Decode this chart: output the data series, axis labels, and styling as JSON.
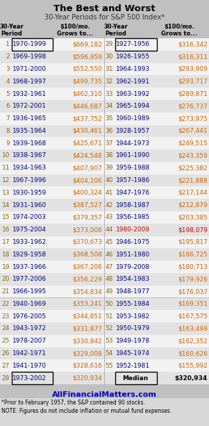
{
  "title": "The Best and Worst",
  "subtitle": "30-Year Periods for S&P 500 Index*",
  "left_data": [
    [
      1,
      "1970-1999",
      "$669,182"
    ],
    [
      2,
      "1969-1998",
      "$596,959"
    ],
    [
      3,
      "1971-2000",
      "$552,550"
    ],
    [
      4,
      "1968-1997",
      "$499,735"
    ],
    [
      5,
      "1932-1961",
      "$462,310"
    ],
    [
      6,
      "1972-2001",
      "$446,687"
    ],
    [
      7,
      "1936-1965",
      "$437,752"
    ],
    [
      8,
      "1935-1964",
      "$430,461"
    ],
    [
      9,
      "1939-1968",
      "$425,671"
    ],
    [
      10,
      "1938-1967",
      "$424,548"
    ],
    [
      11,
      "1934-1963",
      "$407,907"
    ],
    [
      12,
      "1967-1996",
      "$404,106"
    ],
    [
      13,
      "1930-1959",
      "$400,324"
    ],
    [
      14,
      "1931-1960",
      "$387,527"
    ],
    [
      15,
      "1974-2003",
      "$379,357"
    ],
    [
      16,
      "1975-2004",
      "$373,006"
    ],
    [
      17,
      "1933-1962",
      "$370,673"
    ],
    [
      18,
      "1929-1958",
      "$368,508"
    ],
    [
      19,
      "1937-1966",
      "$367,206"
    ],
    [
      20,
      "1977-2006",
      "$356,229"
    ],
    [
      21,
      "1966-1995",
      "$354,834"
    ],
    [
      22,
      "1940-1969",
      "$353,241"
    ],
    [
      23,
      "1976-2005",
      "$344,851"
    ],
    [
      24,
      "1943-1972",
      "$331,877"
    ],
    [
      25,
      "1978-2007",
      "$330,842"
    ],
    [
      26,
      "1942-1971",
      "$329,008"
    ],
    [
      27,
      "1941-1970",
      "$328,616"
    ],
    [
      28,
      "1973-2002",
      "$320,934"
    ]
  ],
  "right_data": [
    [
      29,
      "1927-1956",
      "$316,342"
    ],
    [
      30,
      "1926-1955",
      "$316,311"
    ],
    [
      31,
      "1964-1993",
      "$293,909"
    ],
    [
      32,
      "1962-1991",
      "$293,717"
    ],
    [
      33,
      "1963-1992",
      "$289,871"
    ],
    [
      34,
      "1965-1994",
      "$276,737"
    ],
    [
      35,
      "1960-1989",
      "$273,975"
    ],
    [
      36,
      "1928-1957",
      "$267,441"
    ],
    [
      37,
      "1944-1973",
      "$249,515"
    ],
    [
      38,
      "1961-1990",
      "$243,359"
    ],
    [
      39,
      "1959-1988",
      "$225,382"
    ],
    [
      40,
      "1957-1986",
      "$221,888"
    ],
    [
      41,
      "1947-1976",
      "$217,144"
    ],
    [
      42,
      "1958-1987",
      "$212,879"
    ],
    [
      43,
      "1956-1985",
      "$203,385"
    ],
    [
      44,
      "1980-2009",
      "$198,079"
    ],
    [
      45,
      "1946-1975",
      "$195,817"
    ],
    [
      46,
      "1951-1980",
      "$186,725"
    ],
    [
      47,
      "1979-2008",
      "$180,713"
    ],
    [
      48,
      "1954-1983",
      "$179,926"
    ],
    [
      49,
      "1948-1977",
      "$176,037"
    ],
    [
      50,
      "1955-1984",
      "$169,351"
    ],
    [
      51,
      "1953-1982",
      "$167,575"
    ],
    [
      52,
      "1950-1979",
      "$163,499"
    ],
    [
      53,
      "1949-1978",
      "$162,352"
    ],
    [
      54,
      "1945-1974",
      "$160,626"
    ],
    [
      55,
      "1952-1981",
      "$155,992"
    ]
  ],
  "median_value": "$320,934",
  "highlight_row": 44,
  "footer1": "AllFinancialMatters.com",
  "footnote1": "*Prior to February 1957, the S&P contained 90 stocks.",
  "footnote2": "NOTE: Figures do not include inflation or mutual fund expenses.",
  "bg_color": "#c0c0c0",
  "row_color_light": "#f2f2f2",
  "row_color_dark": "#e2e2e2",
  "highlight_color": "#cc0000",
  "num_color": "#8B6914",
  "period_color": "#000080",
  "value_color": "#cc6600",
  "title_color": "#000000",
  "footer_color": "#0000cc",
  "footnote_color": "#000000",
  "divider_color": "#999999",
  "box_color": "#000000"
}
